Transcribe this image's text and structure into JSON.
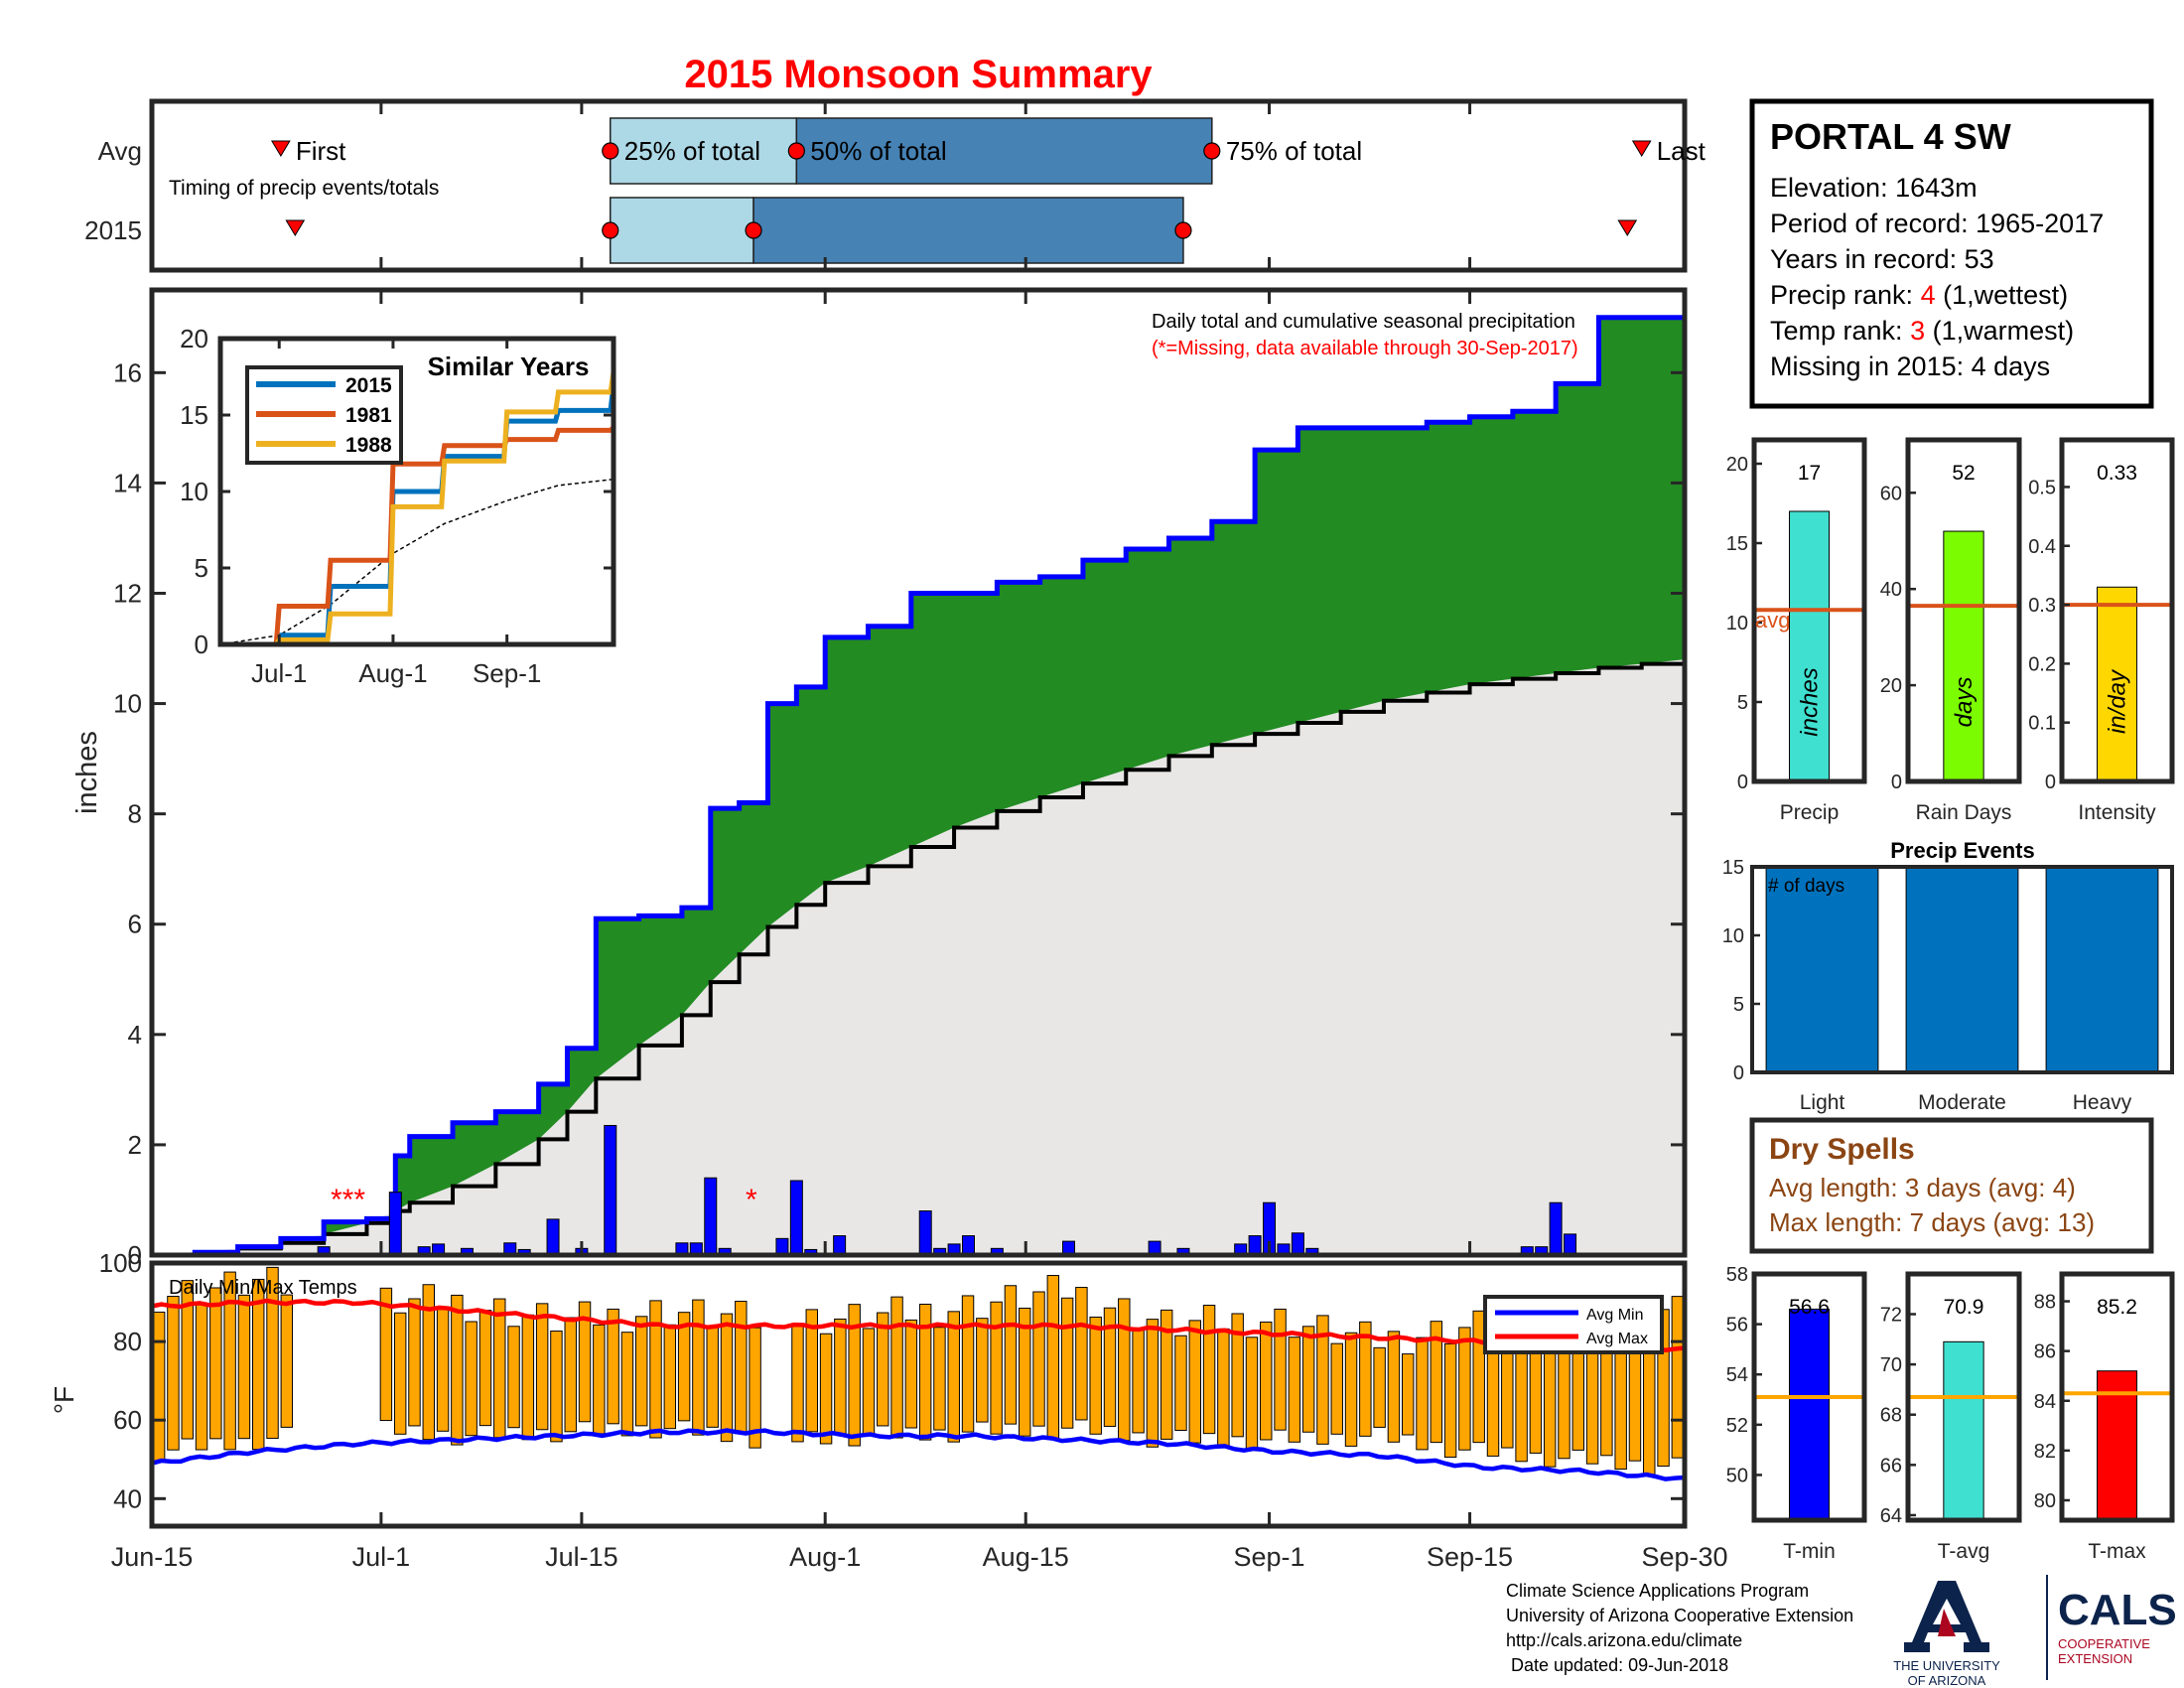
{
  "title": "2015 Monsoon Summary",
  "timing": {
    "row_labels": [
      "Avg",
      "2015"
    ],
    "first_label": "First",
    "last_label": "Last",
    "caption": "Timing of precip events/totals",
    "quartile_labels": [
      "25% of total",
      "50% of total",
      "75% of total"
    ],
    "avg": {
      "first_doy": 175,
      "q25_doy": 198,
      "q50_doy": 211,
      "q75_doy": 240,
      "last_doy": 270
    },
    "y2015": {
      "first_doy": 176,
      "q25_doy": 198,
      "q50_doy": 208,
      "q75_doy": 238,
      "last_doy": 269
    }
  },
  "station": {
    "name": "PORTAL 4 SW",
    "elevation_label": "Elevation: 1643m",
    "period_label": "Period of record: 1965-2017",
    "years_label": "Years in record: 53",
    "precip_rank_prefix": "Precip rank: ",
    "precip_rank_value": "4",
    "precip_rank_suffix": " (1,wettest)",
    "temp_rank_prefix": "Temp rank: ",
    "temp_rank_value": "3",
    "temp_rank_suffix": " (1,warmest)",
    "missing_label": "Missing in 2015: 4 days"
  },
  "main_chart": {
    "ylabel": "inches",
    "annotation_line1": "Daily total and cumulative seasonal precipitation",
    "annotation_line2": "(*=Missing, data available through 30-Sep-2017)",
    "missing_marks": [
      "***",
      "*"
    ],
    "xticks": [
      "Jun-15",
      "Jul-1",
      "Jul-15",
      "Aug-1",
      "Aug-15",
      "Sep-1",
      "Sep-15",
      "Sep-30"
    ],
    "yticks": [
      "0",
      "2",
      "4",
      "6",
      "8",
      "10",
      "12",
      "14",
      "16"
    ],
    "colors": {
      "cumulative_line": "#0000FF",
      "above_avg_fill": "#228B22",
      "avg_fill": "#E8E7E6",
      "daily_bars": "#0000FF",
      "missing": "#FF0000"
    }
  },
  "inset": {
    "title": "Similar Years",
    "xticks": [
      "Jul-1",
      "Aug-1",
      "Sep-1"
    ],
    "yticks": [
      "0",
      "5",
      "10",
      "15",
      "20"
    ],
    "legend": [
      {
        "label": "2015",
        "color": "#0072BD"
      },
      {
        "label": "1981",
        "color": "#D95319"
      },
      {
        "label": "1988",
        "color": "#EDB120"
      }
    ]
  },
  "side_bars": {
    "precip": {
      "value_label": "17",
      "unit": "inches",
      "name": "Precip",
      "avg_label": "avg",
      "yticks": [
        "0",
        "5",
        "10",
        "15",
        "20"
      ]
    },
    "rain_days": {
      "value_label": "52",
      "unit": "days",
      "name": "Rain Days",
      "yticks": [
        "0",
        "20",
        "40",
        "60"
      ]
    },
    "intensity": {
      "value_label": "0.33",
      "unit": "in/day",
      "name": "Intensity",
      "yticks": [
        "0",
        "0.1",
        "0.2",
        "0.3",
        "0.4",
        "0.5"
      ]
    }
  },
  "precip_events": {
    "title": "Precip Events",
    "ylabel_inside": "# of days",
    "categories": [
      "Light",
      "Moderate",
      "Heavy"
    ],
    "yticks": [
      "0",
      "5",
      "10",
      "15"
    ]
  },
  "dry_spells": {
    "title": "Dry Spells",
    "avg_line": "Avg length: 3 days (avg: 4)",
    "max_line": "Max length: 7 days (avg: 13)"
  },
  "temps": {
    "caption": "Daily Min/Max Temps",
    "ylabel": "°F",
    "yticks": [
      "40",
      "60",
      "80",
      "100"
    ],
    "legend": [
      "Avg Min",
      "Avg Max"
    ]
  },
  "temp_bars": {
    "tmin": {
      "value_label": "56.6",
      "name": "T-min",
      "yticks": [
        "50",
        "52",
        "54",
        "56",
        "58"
      ]
    },
    "tavg": {
      "value_label": "70.9",
      "name": "T-avg",
      "yticks": [
        "64",
        "66",
        "68",
        "70",
        "72"
      ]
    },
    "tmax": {
      "value_label": "85.2",
      "name": "T-max",
      "yticks": [
        "80",
        "82",
        "84",
        "86",
        "88"
      ]
    }
  },
  "footer": {
    "line1": "Climate Science Applications Program",
    "line2": "University of Arizona Cooperative Extension",
    "line3": "http://cals.arizona.edu/climate",
    "line4": " Date updated: 09-Jun-2018",
    "ua_line1": "THE UNIVERSITY",
    "ua_line2": "OF ARIZONA",
    "cals": "CALS",
    "cals_sub1": "COOPERATIVE",
    "cals_sub2": "EXTENSION"
  },
  "chart_data": [
    {
      "type": "area",
      "title": "Daily total and cumulative seasonal precipitation",
      "ylabel": "inches",
      "ylim": [
        0,
        17.5
      ],
      "x_dates": [
        "06-15",
        "06-18",
        "06-21",
        "06-24",
        "06-27",
        "06-30",
        "07-02",
        "07-03",
        "07-06",
        "07-09",
        "07-12",
        "07-14",
        "07-16",
        "07-19",
        "07-22",
        "07-24",
        "07-26",
        "07-28",
        "07-30",
        "08-01",
        "08-04",
        "08-07",
        "08-10",
        "08-13",
        "08-16",
        "08-19",
        "08-22",
        "08-25",
        "08-28",
        "08-31",
        "09-03",
        "09-06",
        "09-09",
        "09-12",
        "09-15",
        "09-18",
        "09-21",
        "09-24",
        "09-27",
        "09-30"
      ],
      "series": [
        {
          "name": "cumulative 2015",
          "values": [
            0,
            0.05,
            0.15,
            0.3,
            0.6,
            0.66,
            1.8,
            2.15,
            2.4,
            2.6,
            3.1,
            3.75,
            6.1,
            6.15,
            6.3,
            8.1,
            8.2,
            10.0,
            10.3,
            11.2,
            11.4,
            12.0,
            12.0,
            12.2,
            12.3,
            12.6,
            12.8,
            13.0,
            13.3,
            14.6,
            15.0,
            15.0,
            15.0,
            15.1,
            15.2,
            15.3,
            15.8,
            17.0,
            17.0,
            17.0
          ]
        },
        {
          "name": "average cumulative",
          "values": [
            0,
            0.05,
            0.12,
            0.22,
            0.38,
            0.58,
            0.8,
            0.95,
            1.25,
            1.65,
            2.1,
            2.6,
            3.2,
            3.8,
            4.35,
            4.95,
            5.45,
            5.95,
            6.35,
            6.75,
            7.05,
            7.4,
            7.75,
            8.05,
            8.3,
            8.55,
            8.8,
            9.05,
            9.25,
            9.45,
            9.65,
            9.85,
            10.05,
            10.2,
            10.35,
            10.45,
            10.55,
            10.65,
            10.72,
            10.8
          ]
        }
      ],
      "daily_bars": [
        {
          "x": "06-27",
          "y": 0.15
        },
        {
          "x": "07-02",
          "y": 1.14
        },
        {
          "x": "07-04",
          "y": 0.15
        },
        {
          "x": "07-05",
          "y": 0.2
        },
        {
          "x": "07-07",
          "y": 0.12
        },
        {
          "x": "07-10",
          "y": 0.22
        },
        {
          "x": "07-11",
          "y": 0.1
        },
        {
          "x": "07-13",
          "y": 0.65
        },
        {
          "x": "07-15",
          "y": 0.12
        },
        {
          "x": "07-17",
          "y": 2.35
        },
        {
          "x": "07-22",
          "y": 0.22
        },
        {
          "x": "07-23",
          "y": 0.22
        },
        {
          "x": "07-24",
          "y": 1.4
        },
        {
          "x": "07-25",
          "y": 0.12
        },
        {
          "x": "07-29",
          "y": 0.3
        },
        {
          "x": "07-30",
          "y": 1.35
        },
        {
          "x": "07-31",
          "y": 0.1
        },
        {
          "x": "08-02",
          "y": 0.35
        },
        {
          "x": "08-08",
          "y": 0.8
        },
        {
          "x": "08-09",
          "y": 0.12
        },
        {
          "x": "08-10",
          "y": 0.2
        },
        {
          "x": "08-11",
          "y": 0.35
        },
        {
          "x": "08-13",
          "y": 0.12
        },
        {
          "x": "08-18",
          "y": 0.25
        },
        {
          "x": "08-24",
          "y": 0.25
        },
        {
          "x": "08-26",
          "y": 0.12
        },
        {
          "x": "08-30",
          "y": 0.2
        },
        {
          "x": "08-31",
          "y": 0.35
        },
        {
          "x": "09-01",
          "y": 0.95
        },
        {
          "x": "09-02",
          "y": 0.2
        },
        {
          "x": "09-03",
          "y": 0.4
        },
        {
          "x": "09-04",
          "y": 0.12
        },
        {
          "x": "09-19",
          "y": 0.15
        },
        {
          "x": "09-20",
          "y": 0.15
        },
        {
          "x": "09-21",
          "y": 0.95
        },
        {
          "x": "09-22",
          "y": 0.38
        }
      ]
    },
    {
      "type": "line",
      "title": "Similar Years",
      "ylim": [
        0,
        20
      ],
      "x": [
        "Jun-15",
        "Jul-1",
        "Jul-15",
        "Aug-1",
        "Aug-15",
        "Sep-1",
        "Sep-15",
        "Sep-30"
      ],
      "series": [
        {
          "name": "2015",
          "values": [
            0,
            0.6,
            3.8,
            10.0,
            12.3,
            14.6,
            15.3,
            17.0
          ]
        },
        {
          "name": "1981",
          "values": [
            0,
            2.5,
            5.5,
            11.8,
            13.0,
            13.4,
            14.0,
            14.2
          ]
        },
        {
          "name": "1988",
          "values": [
            0,
            0.3,
            2.0,
            9.0,
            12.0,
            15.2,
            16.5,
            17.8
          ]
        }
      ]
    },
    {
      "type": "bar",
      "title": "Precip",
      "categories": [
        "Precip"
      ],
      "values": [
        17
      ],
      "average": 10.8,
      "ylim": [
        0,
        21.5
      ]
    },
    {
      "type": "bar",
      "title": "Rain Days",
      "categories": [
        "Rain Days"
      ],
      "values": [
        52
      ],
      "average": 36.5,
      "ylim": [
        0,
        71
      ]
    },
    {
      "type": "bar",
      "title": "Intensity",
      "categories": [
        "Intensity"
      ],
      "values": [
        0.33
      ],
      "average": 0.3,
      "ylim": [
        0,
        0.58
      ]
    },
    {
      "type": "bar",
      "title": "Precip Events",
      "categories": [
        "Light",
        "Moderate",
        "Heavy"
      ],
      "values": [
        15,
        15,
        15
      ],
      "ylim": [
        0,
        15
      ]
    },
    {
      "type": "bar",
      "title": "T-min",
      "categories": [
        "T-min"
      ],
      "values": [
        56.6
      ],
      "average": 53.1,
      "ylim": [
        48.2,
        58
      ]
    },
    {
      "type": "bar",
      "title": "T-avg",
      "categories": [
        "T-avg"
      ],
      "values": [
        70.9
      ],
      "average": 68.7,
      "ylim": [
        63.8,
        73.6
      ]
    },
    {
      "type": "bar",
      "title": "T-max",
      "categories": [
        "T-max"
      ],
      "values": [
        85.2
      ],
      "average": 84.3,
      "ylim": [
        79.2,
        89.1
      ]
    },
    {
      "type": "bar",
      "title": "Daily Min/Max Temps",
      "ylabel": "°F",
      "ylim": [
        33,
        100
      ],
      "x": [
        "Jun-15",
        "Jun-22",
        "Jun-29",
        "Jul-6",
        "Jul-13",
        "Jul-20",
        "Jul-27",
        "Aug-3",
        "Aug-10",
        "Aug-17",
        "Aug-24",
        "Aug-31",
        "Sep-7",
        "Sep-14",
        "Sep-21",
        "Sep-30"
      ],
      "tmax": [
        92,
        95,
        90,
        90,
        85,
        88,
        85,
        86,
        89,
        93,
        84,
        86,
        80,
        84,
        89,
        87
      ],
      "tmin": [
        52,
        55,
        58,
        56,
        57,
        58,
        55,
        56,
        57,
        58,
        55,
        55,
        56,
        52,
        50,
        48
      ],
      "series": [
        {
          "name": "Avg Min",
          "values": [
            49,
            52,
            54,
            55,
            56,
            57,
            57,
            56,
            56,
            55,
            54,
            52,
            51,
            48,
            47,
            45
          ]
        },
        {
          "name": "Avg Max",
          "values": [
            89,
            90,
            90,
            88,
            86,
            84,
            84,
            84,
            84,
            84,
            83,
            82,
            81,
            80,
            79,
            78
          ]
        }
      ]
    }
  ]
}
